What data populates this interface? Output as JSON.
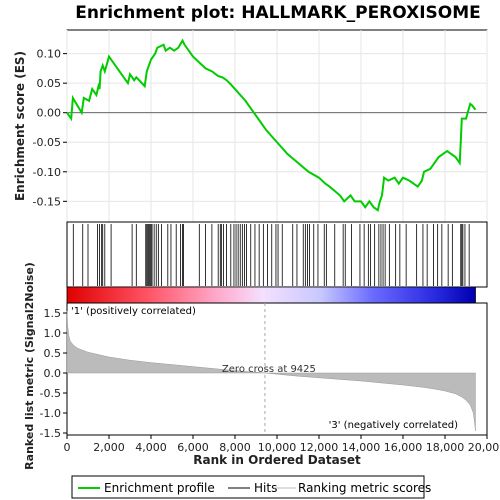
{
  "chart_data": {
    "type": "line",
    "title": "Enrichment plot: HALLMARK_PEROXISOME",
    "panels": {
      "enrichment": {
        "ylabel": "Enrichment score (ES)",
        "ylim": [
          -0.185,
          0.14
        ],
        "yticks": [
          0.1,
          0.05,
          0.0,
          -0.05,
          -0.1,
          -0.15
        ],
        "ytick_labels": [
          "0.10",
          "0.05",
          "0.00",
          "-0.05",
          "-0.10",
          "-0.15"
        ],
        "series": [
          {
            "name": "Enrichment profile",
            "color": "#00cc00",
            "x": [
              0,
              200,
              280,
              700,
              800,
              1050,
              1200,
              1400,
              1500,
              1550,
              1600,
              1700,
              1800,
              2000,
              2100,
              2900,
              3000,
              3200,
              3300,
              3700,
              3800,
              3900,
              4000,
              4200,
              4300,
              4600,
              4700,
              4900,
              5100,
              5300,
              5500,
              5600,
              6000,
              6300,
              6600,
              6900,
              7200,
              7400,
              7600,
              7800,
              8000,
              8500,
              9000,
              9500,
              10000,
              10500,
              11000,
              11500,
              12000,
              12300,
              12500,
              13000,
              13200,
              13500,
              13700,
              14000,
              14200,
              14400,
              14600,
              14800,
              14900,
              15000,
              15100,
              15300,
              15600,
              15800,
              16000,
              16300,
              16500,
              16700,
              16900,
              17000,
              17300,
              17500,
              17700,
              17900,
              18100,
              18300,
              18500,
              18700,
              18750,
              18800,
              19000,
              19200,
              19300,
              19450
            ],
            "y": [
              0.0,
              -0.01,
              0.025,
              0.0,
              0.025,
              0.02,
              0.04,
              0.03,
              0.045,
              0.04,
              0.07,
              0.08,
              0.07,
              0.095,
              0.09,
              0.05,
              0.065,
              0.055,
              0.06,
              0.045,
              0.07,
              0.08,
              0.09,
              0.1,
              0.11,
              0.115,
              0.105,
              0.11,
              0.105,
              0.11,
              0.122,
              0.115,
              0.095,
              0.085,
              0.075,
              0.07,
              0.062,
              0.06,
              0.055,
              0.048,
              0.04,
              0.02,
              -0.005,
              -0.03,
              -0.05,
              -0.07,
              -0.085,
              -0.1,
              -0.11,
              -0.12,
              -0.125,
              -0.14,
              -0.15,
              -0.14,
              -0.15,
              -0.15,
              -0.16,
              -0.15,
              -0.16,
              -0.165,
              -0.15,
              -0.14,
              -0.11,
              -0.115,
              -0.11,
              -0.12,
              -0.11,
              -0.115,
              -0.12,
              -0.125,
              -0.115,
              -0.1,
              -0.095,
              -0.085,
              -0.075,
              -0.07,
              -0.065,
              -0.07,
              -0.075,
              -0.085,
              -0.05,
              -0.01,
              -0.01,
              0.015,
              0.012,
              0.005
            ]
          }
        ]
      },
      "hits": {
        "color": "#000000",
        "x": [
          300,
          750,
          1000,
          1450,
          1550,
          1650,
          1700,
          1800,
          2100,
          3100,
          3300,
          3750,
          3800,
          3850,
          3900,
          3950,
          4000,
          4050,
          4150,
          4250,
          4350,
          4500,
          4800,
          4950,
          5200,
          5400,
          5500,
          5550,
          6300,
          6600,
          6900,
          7200,
          7300,
          7350,
          7450,
          7600,
          7800,
          7950,
          8050,
          8150,
          8250,
          8350,
          8450,
          8550,
          8750,
          8950,
          9150,
          9350,
          9550,
          9750,
          9950,
          10050,
          10250,
          10750,
          10950,
          11250,
          11350,
          11450,
          11550,
          11750,
          11950,
          12250,
          12350,
          12750,
          13150,
          13250,
          13550,
          13950,
          14150,
          14350,
          14450,
          14650,
          14850,
          14950,
          15050,
          15150,
          15350,
          15650,
          15850,
          16150,
          16650,
          16950,
          17150,
          17450,
          17650,
          17850,
          18150,
          18350,
          18750,
          18800,
          18850,
          18950,
          19150
        ]
      },
      "metric": {
        "ylabel": "Ranked list metric (Signal2Noise)",
        "ylim": [
          -1.55,
          1.75
        ],
        "yticks": [
          1.5,
          1.0,
          0.5,
          0.0,
          -0.5,
          -1.0,
          -1.5
        ],
        "ytick_labels": [
          "1.5",
          "1.0",
          "0.5",
          "0.0",
          "-0.5",
          "-1.0",
          "-1.5"
        ],
        "x": [
          0,
          30,
          80,
          150,
          300,
          500,
          1000,
          2000,
          3000,
          4000,
          5000,
          6000,
          7000,
          8000,
          9000,
          9425,
          10000,
          11000,
          12000,
          13000,
          14000,
          15000,
          16000,
          17000,
          17500,
          18000,
          18500,
          18800,
          19000,
          19200,
          19350,
          19420,
          19450
        ],
        "values": [
          1.55,
          1.2,
          0.95,
          0.8,
          0.7,
          0.62,
          0.52,
          0.4,
          0.32,
          0.26,
          0.21,
          0.16,
          0.11,
          0.06,
          0.02,
          0.0,
          -0.03,
          -0.08,
          -0.12,
          -0.16,
          -0.2,
          -0.25,
          -0.3,
          -0.36,
          -0.4,
          -0.45,
          -0.52,
          -0.6,
          -0.68,
          -0.8,
          -1.0,
          -1.3,
          -1.45
        ],
        "fill_color": "#bbbbbb",
        "zero_cross_label": "Zero cross at 9425",
        "zero_cross_x": 9425,
        "positive_label": "'1' (positively correlated)",
        "negative_label": "'3' (negatively correlated)",
        "positive_color": "#dd0000",
        "negative_color": "#0000cc"
      }
    },
    "xlabel": "Rank in Ordered Dataset",
    "xlim": [
      0,
      20000
    ],
    "xticks": [
      0,
      2000,
      4000,
      6000,
      8000,
      10000,
      12000,
      14000,
      16000,
      18000,
      20000
    ],
    "xtick_labels": [
      "0",
      "2,000",
      "4,000",
      "6,000",
      "8,000",
      "10,000",
      "12,000",
      "14,000",
      "16,000",
      "18,000",
      "20,000"
    ],
    "data_extent": 19450,
    "legend": {
      "placement": "bottom",
      "items": [
        {
          "label": "Enrichment profile",
          "color": "#00cc00"
        },
        {
          "label": "Hits",
          "color": "#000000"
        },
        {
          "label": "Ranking metric scores",
          "color": "#bbbbbb"
        }
      ]
    }
  }
}
